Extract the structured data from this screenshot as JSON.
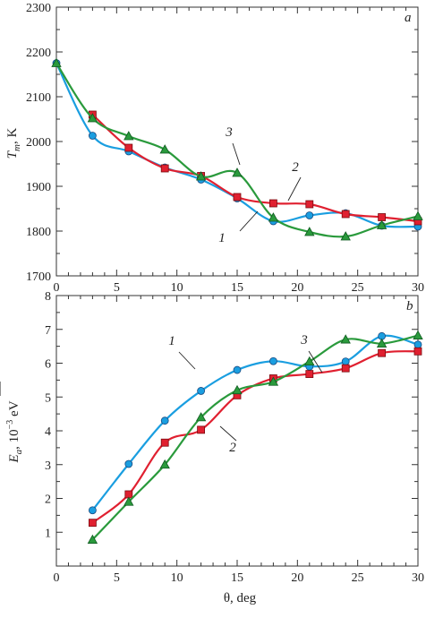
{
  "chart_data": [
    {
      "panel": "a",
      "type": "line",
      "xlabel": "θ, deg",
      "ylabel_main": "T",
      "ylabel_sub": "m",
      "ylabel_rest": ", K",
      "xlim": [
        0,
        30
      ],
      "ylim": [
        1700,
        2300
      ],
      "xticks": [
        0,
        5,
        10,
        15,
        20,
        25,
        30
      ],
      "yticks": [
        1700,
        1800,
        1900,
        2000,
        2100,
        2200,
        2300
      ],
      "series": [
        {
          "name": "1",
          "color": "#1a9ee0",
          "marker": "circle",
          "x": [
            0,
            3,
            6,
            9,
            12,
            15,
            18,
            21,
            24,
            27,
            30
          ],
          "y": [
            2175,
            2013,
            1978,
            1942,
            1915,
            1873,
            1822,
            1835,
            1840,
            1812,
            1810
          ]
        },
        {
          "name": "2",
          "color": "#e02030",
          "marker": "square",
          "x": [
            3,
            6,
            9,
            12,
            15,
            18,
            21,
            24,
            27,
            30
          ],
          "y": [
            2060,
            1986,
            1940,
            1923,
            1876,
            1862,
            1860,
            1838,
            1831,
            1822
          ]
        },
        {
          "name": "3",
          "color": "#2a9a3c",
          "marker": "triangle",
          "x": [
            0,
            3,
            6,
            9,
            12,
            15,
            18,
            21,
            24,
            27,
            30
          ],
          "y": [
            2175,
            2052,
            2012,
            1982,
            1922,
            1930,
            1830,
            1798,
            1788,
            1813,
            1833
          ]
        }
      ]
    },
    {
      "panel": "b",
      "type": "line",
      "xlabel": "θ, deg",
      "ylabel_main": "E",
      "ylabel_sub": "a",
      "ylabel_rest": ", 10",
      "ylabel_sup": "−3",
      "ylabel_unit": " eV",
      "xlim": [
        0,
        30
      ],
      "ylim": [
        0,
        8
      ],
      "xticks": [
        0,
        5,
        10,
        15,
        20,
        25,
        30
      ],
      "yticks": [
        1,
        2,
        3,
        4,
        5,
        6,
        7,
        8
      ],
      "series": [
        {
          "name": "1",
          "color": "#1a9ee0",
          "marker": "circle",
          "x": [
            3,
            6,
            9,
            12,
            15,
            18,
            21,
            24,
            27,
            30
          ],
          "y": [
            1.65,
            3.02,
            4.3,
            5.18,
            5.8,
            6.06,
            5.9,
            6.05,
            6.8,
            6.55
          ]
        },
        {
          "name": "2",
          "color": "#e02030",
          "marker": "square",
          "x": [
            3,
            6,
            9,
            12,
            15,
            18,
            21,
            24,
            27,
            30
          ],
          "y": [
            1.28,
            2.12,
            3.65,
            4.03,
            5.05,
            5.55,
            5.68,
            5.85,
            6.3,
            6.35
          ]
        },
        {
          "name": "3",
          "color": "#2a9a3c",
          "marker": "triangle",
          "x": [
            3,
            6,
            9,
            12,
            15,
            18,
            21,
            24,
            27,
            30
          ],
          "y": [
            0.78,
            1.9,
            3.0,
            4.4,
            5.2,
            5.45,
            6.05,
            6.7,
            6.58,
            6.82
          ]
        }
      ]
    }
  ]
}
